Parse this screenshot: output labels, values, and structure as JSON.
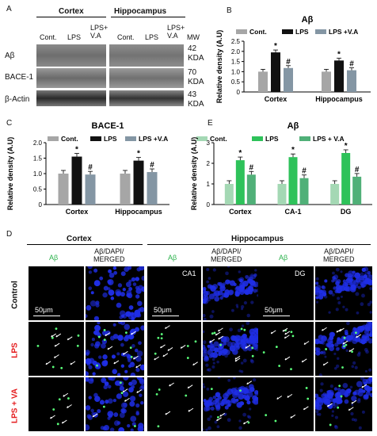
{
  "panel_letters": {
    "a": "A",
    "b": "B",
    "c": "C",
    "d": "D",
    "e": "E"
  },
  "western_blot": {
    "groups": [
      "Cortex",
      "Hippocampus"
    ],
    "lanes": [
      "Cont.",
      "LPS",
      "LPS+\nV.A",
      "Cont.",
      "LPS",
      "LPS+\nV.A"
    ],
    "mw_header": "MW",
    "rows": [
      {
        "name": "Aβ",
        "mw": "42",
        "unit": "KDA"
      },
      {
        "name": "BACE-1",
        "mw": "70",
        "unit": "KDA"
      },
      {
        "name": "β-Actin",
        "mw": "43",
        "unit": "KDA"
      }
    ]
  },
  "legend": {
    "cont": "Cont.",
    "lps": "LPS",
    "lpsva": "LPS +V.A",
    "lpsva_e": "LPS + V.A"
  },
  "colors": {
    "cont_grey": "#a6a6a6",
    "lps_black": "#111111",
    "lpsva_grey": "#8496a4",
    "cont_green": "#a4d8b4",
    "lps_green": "#2ec25a",
    "lpsva_green": "#50b078",
    "dapi_blue": "#1f2ee6",
    "abeta_green": "#5aff7a",
    "lps_red": "#e41a1c"
  },
  "chart_data": [
    {
      "panel": "B",
      "type": "bar",
      "title": "Aβ",
      "ylabel": "Relative density (A.U)",
      "categories": [
        "Cortex",
        "Hippocampus"
      ],
      "ylim": [
        0,
        2.5
      ],
      "yticks": [
        0,
        0.5,
        1.0,
        1.5,
        2.0,
        2.5
      ],
      "series": [
        {
          "name": "Cont.",
          "values": [
            1.0,
            1.0
          ]
        },
        {
          "name": "LPS",
          "values": [
            1.95,
            1.55
          ]
        },
        {
          "name": "LPS +V.A",
          "values": [
            1.18,
            1.07
          ]
        }
      ],
      "annotations": [
        [
          "",
          "*",
          "#"
        ],
        [
          "",
          "*",
          "#"
        ]
      ]
    },
    {
      "panel": "C",
      "type": "bar",
      "title": "BACE-1",
      "ylabel": "Relative density (A.U)",
      "categories": [
        "Cortex",
        "Hippocampus"
      ],
      "ylim": [
        0,
        2.0
      ],
      "yticks": [
        0,
        0.5,
        1.0,
        1.5,
        2.0
      ],
      "series": [
        {
          "name": "Cont.",
          "values": [
            1.0,
            1.0
          ]
        },
        {
          "name": "LPS",
          "values": [
            1.55,
            1.42
          ]
        },
        {
          "name": "LPS +V.A",
          "values": [
            0.97,
            1.05
          ]
        }
      ],
      "annotations": [
        [
          "",
          "*",
          "#"
        ],
        [
          "",
          "*",
          "#"
        ]
      ]
    },
    {
      "panel": "E",
      "type": "bar",
      "title": "Aβ",
      "ylabel": "Relative density (A.U)",
      "categories": [
        "Cortex",
        "CA-1",
        "DG"
      ],
      "ylim": [
        0,
        3
      ],
      "yticks": [
        0,
        1,
        2,
        3
      ],
      "series": [
        {
          "name": "Cont.",
          "values": [
            1.0,
            1.0,
            1.0
          ]
        },
        {
          "name": "LPS",
          "values": [
            2.15,
            2.3,
            2.5
          ]
        },
        {
          "name": "LPS + V.A",
          "values": [
            1.45,
            1.28,
            1.35
          ]
        }
      ],
      "annotations": [
        [
          "",
          "*",
          "#"
        ],
        [
          "",
          "*",
          "#"
        ],
        [
          "",
          "*",
          "#"
        ]
      ]
    }
  ],
  "micrographs": {
    "regions": {
      "cortex": "Cortex",
      "hippocampus": "Hippocampus"
    },
    "columns": [
      "Aβ",
      "Aβ/DAPI/\nMERGED",
      "Aβ",
      "Aβ/DAPI/\nMERGED",
      "Aβ",
      "Aβ/DAPI/\nMERGED"
    ],
    "rows": [
      "Control",
      "LPS",
      "LPS + VA"
    ],
    "subregions": {
      "ca1": "CA1",
      "dg": "DG"
    },
    "scale_bar": "50μm"
  }
}
